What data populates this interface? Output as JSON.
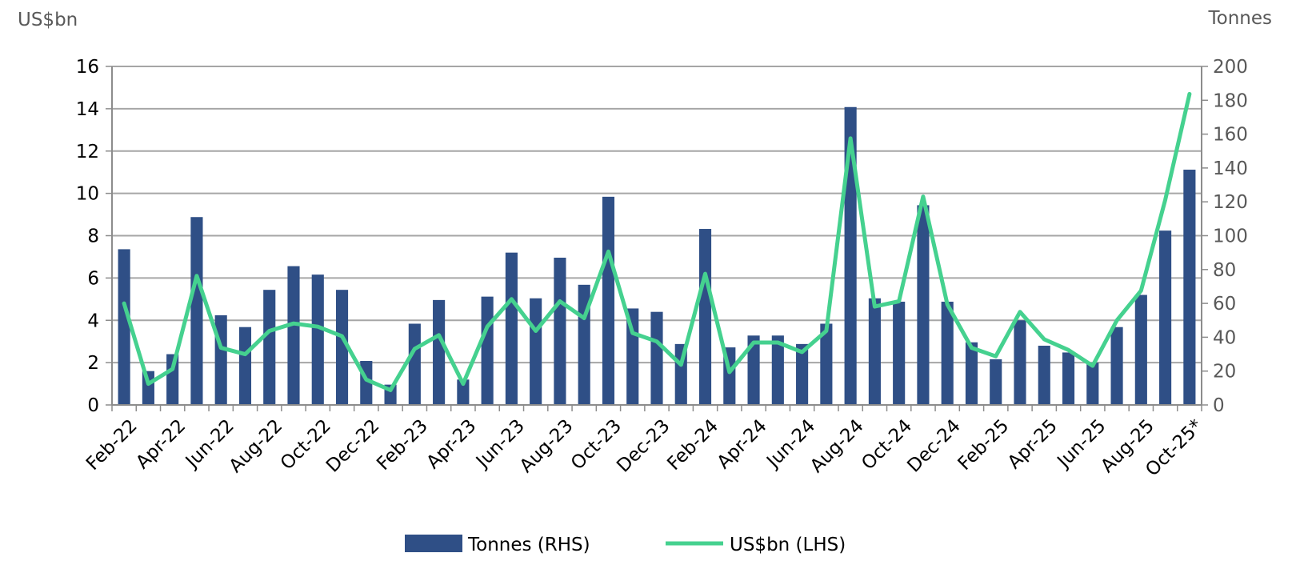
{
  "chart_data": {
    "type": "bar+line",
    "left_axis_label": "US$bn",
    "right_axis_label": "Tonnes",
    "left_ylim": [
      0,
      16
    ],
    "left_ticks": [
      "0",
      "2",
      "4",
      "6",
      "8",
      "10",
      "12",
      "14",
      "16"
    ],
    "right_ylim": [
      0,
      200
    ],
    "right_ticks": [
      "0",
      "20",
      "40",
      "60",
      "80",
      "100",
      "120",
      "140",
      "160",
      "180",
      "200"
    ],
    "categories": [
      "Feb-22",
      "Mar-22",
      "Apr-22",
      "May-22",
      "Jun-22",
      "Jul-22",
      "Aug-22",
      "Sep-22",
      "Oct-22",
      "Nov-22",
      "Dec-22",
      "Jan-23",
      "Feb-23",
      "Mar-23",
      "Apr-23",
      "May-23",
      "Jun-23",
      "Jul-23",
      "Aug-23",
      "Sep-23",
      "Oct-23",
      "Nov-23",
      "Dec-23",
      "Jan-24",
      "Feb-24",
      "Mar-24",
      "Apr-24",
      "May-24",
      "Jun-24",
      "Jul-24",
      "Aug-24",
      "Sep-24",
      "Oct-24",
      "Nov-24",
      "Dec-24",
      "Jan-25",
      "Feb-25",
      "Mar-25",
      "Apr-25",
      "May-25",
      "Jun-25",
      "Jul-25",
      "Aug-25",
      "Sep-25",
      "Oct-25*"
    ],
    "tick_labels": [
      "Feb-22",
      "Apr-22",
      "Jun-22",
      "Aug-22",
      "Oct-22",
      "Dec-22",
      "Feb-23",
      "Apr-23",
      "Jun-23",
      "Aug-23",
      "Oct-23",
      "Dec-23",
      "Feb-24",
      "Apr-24",
      "Jun-24",
      "Aug-24",
      "Oct-24",
      "Dec-24",
      "Feb-25",
      "Apr-25",
      "Jun-25",
      "Aug-25",
      "Oct-25*"
    ],
    "series": [
      {
        "name": "Tonnes (RHS)",
        "type": "bar",
        "axis": "right",
        "color": "#2f4f86",
        "values": [
          92,
          20,
          30,
          111,
          53,
          46,
          68,
          82,
          77,
          68,
          26,
          12,
          48,
          62,
          15,
          64,
          90,
          63,
          87,
          71,
          123,
          57,
          55,
          36,
          104,
          34,
          41,
          41,
          36,
          48,
          176,
          63,
          61,
          118,
          61,
          37,
          27,
          50,
          35,
          31,
          25,
          46,
          65,
          103,
          139
        ]
      },
      {
        "name": "US$bn (LHS)",
        "type": "line",
        "axis": "left",
        "color": "#45d18f",
        "values": [
          4.8,
          1.0,
          1.7,
          6.1,
          2.7,
          2.4,
          3.5,
          3.85,
          3.7,
          3.25,
          1.2,
          0.7,
          2.65,
          3.3,
          1.0,
          3.7,
          5.0,
          3.5,
          4.9,
          4.1,
          7.25,
          3.4,
          3.0,
          1.9,
          6.2,
          1.55,
          2.95,
          2.95,
          2.5,
          3.5,
          12.6,
          4.65,
          4.9,
          9.85,
          4.75,
          2.7,
          2.3,
          4.4,
          3.1,
          2.6,
          1.85,
          4.0,
          5.4,
          9.7,
          14.7
        ]
      }
    ],
    "legend": [
      {
        "label": "Tonnes (RHS)",
        "kind": "bar",
        "color": "#2f4f86"
      },
      {
        "label": "US$bn (LHS)",
        "kind": "line",
        "color": "#45d18f"
      }
    ],
    "legend_position": "bottom-center",
    "grid": true
  }
}
